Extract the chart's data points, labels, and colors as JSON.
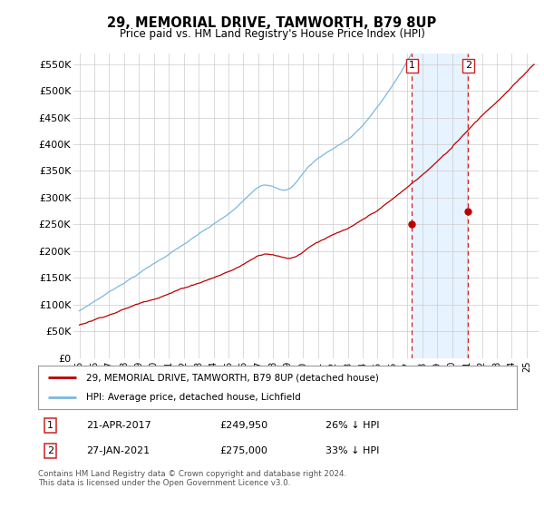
{
  "title": "29, MEMORIAL DRIVE, TAMWORTH, B79 8UP",
  "subtitle": "Price paid vs. HM Land Registry's House Price Index (HPI)",
  "ylim": [
    0,
    570000
  ],
  "yticks": [
    0,
    50000,
    100000,
    150000,
    200000,
    250000,
    300000,
    350000,
    400000,
    450000,
    500000,
    550000
  ],
  "ytick_labels": [
    "£0",
    "£50K",
    "£100K",
    "£150K",
    "£200K",
    "£250K",
    "£300K",
    "£350K",
    "£400K",
    "£450K",
    "£500K",
    "£550K"
  ],
  "hpi_color": "#7ab8e0",
  "price_color": "#bb0000",
  "vline_color": "#cc2222",
  "shade_color": "#ddeeff",
  "marker1_date": 2017.3,
  "marker1_price": 249950,
  "marker2_date": 2021.07,
  "marker2_price": 275000,
  "marker1_label": "1",
  "marker2_label": "2",
  "legend_entries": [
    "29, MEMORIAL DRIVE, TAMWORTH, B79 8UP (detached house)",
    "HPI: Average price, detached house, Lichfield"
  ],
  "table_rows": [
    [
      "1",
      "21-APR-2017",
      "£249,950",
      "26% ↓ HPI"
    ],
    [
      "2",
      "27-JAN-2021",
      "£275,000",
      "33% ↓ HPI"
    ]
  ],
  "footnote": "Contains HM Land Registry data © Crown copyright and database right 2024.\nThis data is licensed under the Open Government Licence v3.0.",
  "background_color": "#ffffff",
  "grid_color": "#cccccc"
}
